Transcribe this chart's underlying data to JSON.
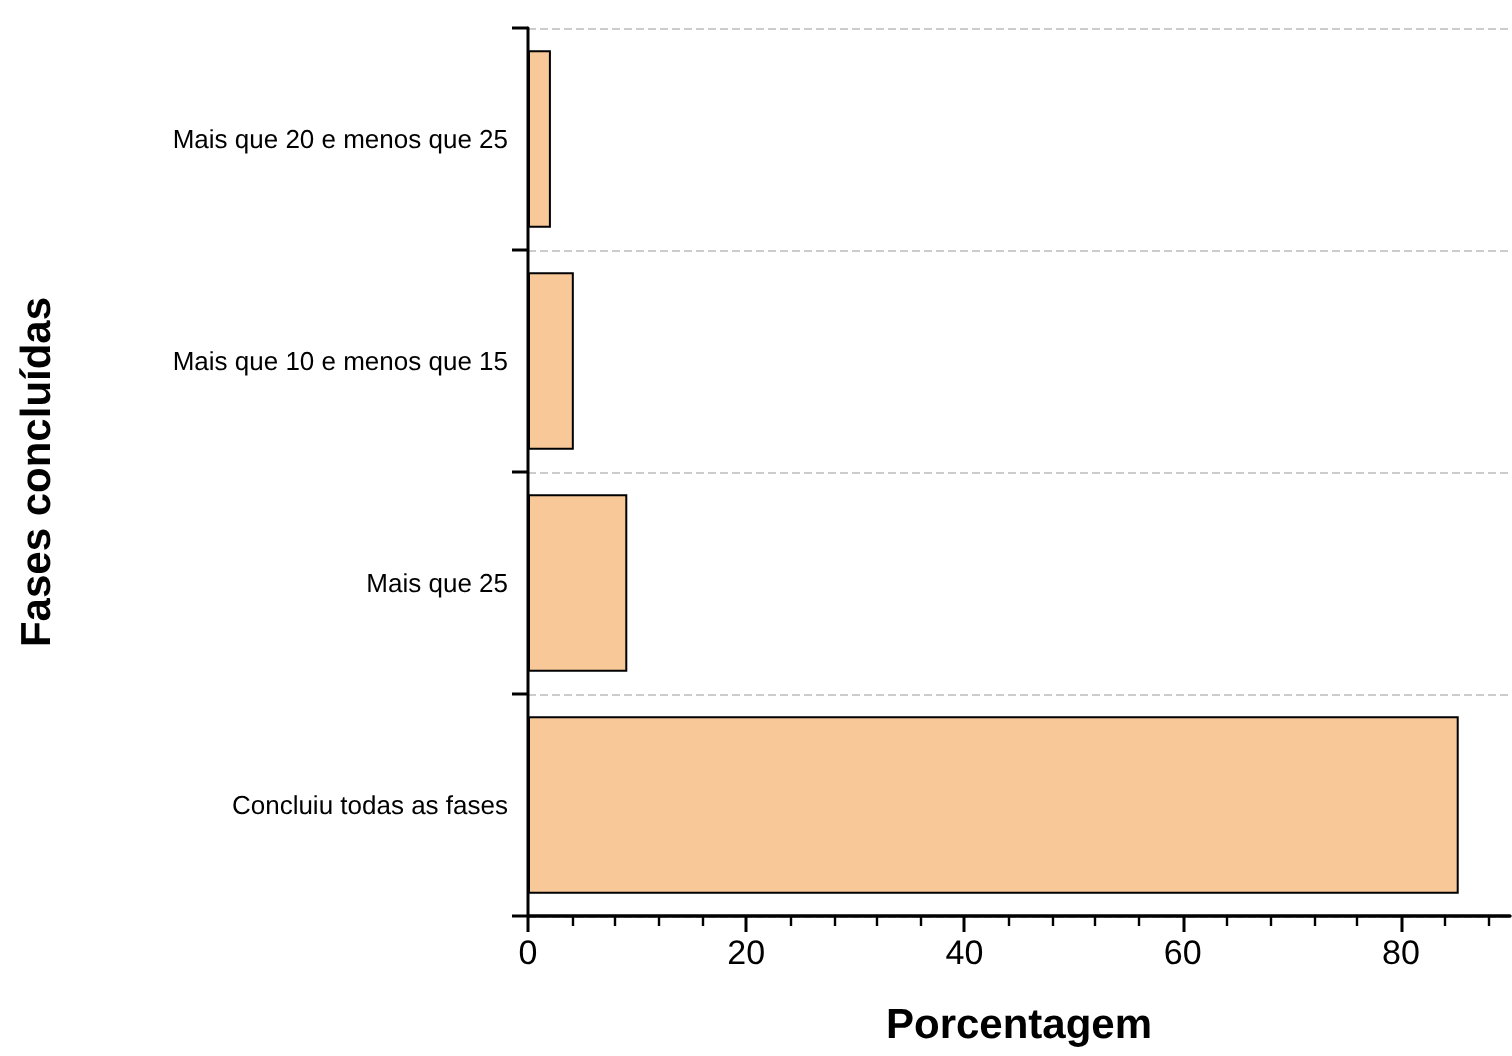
{
  "chart_data": {
    "type": "bar",
    "orientation": "horizontal",
    "xlabel": "Porcentagem",
    "ylabel": "Fases concluídas",
    "categories": [
      "Mais que 20 e menos que 25",
      "Mais que 10 e menos que 15",
      "Mais que 25",
      "Concluiu todas as fases"
    ],
    "values": [
      2.1,
      4.2,
      9.1,
      85.3
    ],
    "color": "#f9c898",
    "xlim": [
      0,
      90
    ],
    "xticks": [
      0,
      {
        "value": 4,
        "label": null
      },
      {
        "value": 8,
        "label": null
      },
      {
        "value": 12,
        "label": null
      },
      {
        "value": 16,
        "label": null
      },
      20,
      {
        "value": 24,
        "label": null
      },
      {
        "value": 28,
        "label": null
      },
      {
        "value": 32,
        "label": null
      },
      {
        "value": 36,
        "label": null
      },
      40,
      {
        "value": 44,
        "label": null
      },
      {
        "value": 48,
        "label": null
      },
      {
        "value": 52,
        "label": null
      },
      {
        "value": 56,
        "label": null
      },
      60,
      {
        "value": 64,
        "label": null
      },
      {
        "value": 68,
        "label": null
      },
      {
        "value": 72,
        "label": null
      },
      {
        "value": 76,
        "label": null
      },
      80,
      {
        "value": 84,
        "label": null
      },
      {
        "value": 88,
        "label": null
      }
    ],
    "grid": "y"
  }
}
